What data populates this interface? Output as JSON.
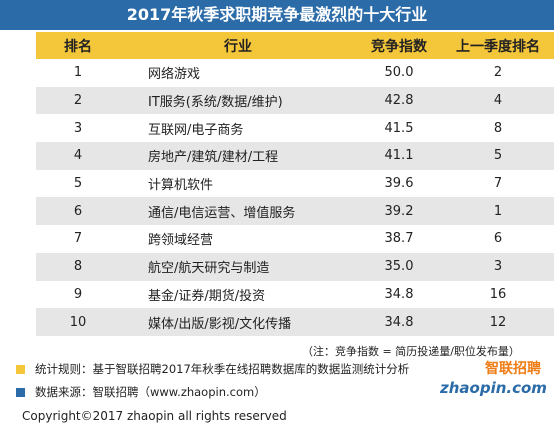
{
  "title": "2017年秋季求职期竞争最激烈的十大行业",
  "columns": [
    "排名",
    "行业",
    "竞争指数",
    "上一季度排名"
  ],
  "rows": [
    {
      "rank": "1",
      "industry": "网络游戏",
      "index": "50.0",
      "prev": "2"
    },
    {
      "rank": "2",
      "industry": "IT服务(系统/数据/维护)",
      "index": "42.8",
      "prev": "4"
    },
    {
      "rank": "3",
      "industry": "互联网/电子商务",
      "index": "41.5",
      "prev": "8"
    },
    {
      "rank": "4",
      "industry": "房地产/建筑/建材/工程",
      "index": "41.1",
      "prev": "5"
    },
    {
      "rank": "5",
      "industry": "计算机软件",
      "index": "39.6",
      "prev": "7"
    },
    {
      "rank": "6",
      "industry": "通信/电信运营、增值服务",
      "index": "39.2",
      "prev": "1"
    },
    {
      "rank": "7",
      "industry": "跨领域经营",
      "index": "38.7",
      "prev": "6"
    },
    {
      "rank": "8",
      "industry": "航空/航天研究与制造",
      "index": "35.0",
      "prev": "3"
    },
    {
      "rank": "9",
      "industry": "基金/证券/期货/投资",
      "index": "34.8",
      "prev": "16"
    },
    {
      "rank": "10",
      "industry": "媒体/出版/影视/文化传播",
      "index": "34.8",
      "prev": "12"
    }
  ],
  "note": "（注：竞争指数 = 简历投递量/职位发布量）",
  "legend": [
    {
      "label": "统计规则：基于智联招聘2017年秋季在线招聘数据库的数据监测统计分析",
      "color": "#f4c63a"
    },
    {
      "label": "数据来源：智联招聘（www.zhaopin.com）",
      "color": "#2a6ba8"
    }
  ],
  "logo": {
    "cn": "智联招聘",
    "en": "zhaopin.com"
  },
  "copyright": "Copyright©2017 zhaopin all rights reserved",
  "colors": {
    "header_blue": "#2a6ba8",
    "header_yellow": "#f4c63a",
    "stripe_gray": "#e6e6e6",
    "logo_orange": "#ef7d15"
  }
}
